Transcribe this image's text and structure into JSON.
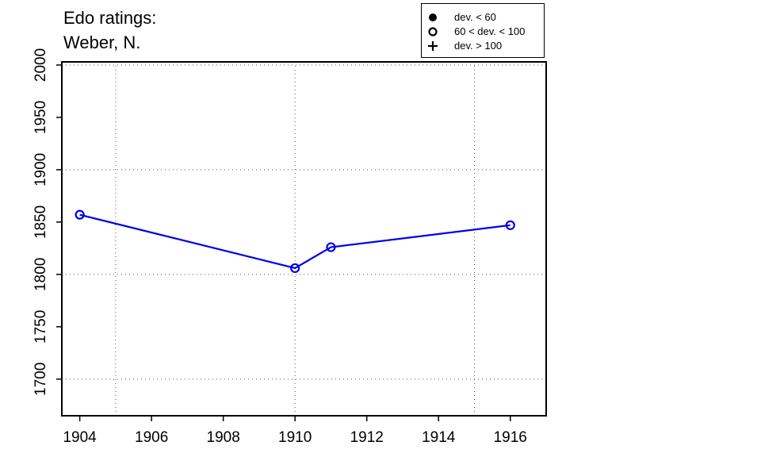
{
  "title": {
    "line1": "Edo ratings:",
    "line2": "Weber, N."
  },
  "legend": {
    "items": [
      {
        "symbol": "filled-circle",
        "label": "dev. < 60"
      },
      {
        "symbol": "open-circle",
        "label": "60 < dev. < 100"
      },
      {
        "symbol": "plus",
        "label": "dev. > 100"
      }
    ]
  },
  "colors": {
    "series": "#0000ee",
    "axis": "#000000",
    "grid": "#555555"
  },
  "chart_data": {
    "type": "line",
    "title": "Edo ratings: Weber, N.",
    "xlabel": "",
    "ylabel": "",
    "xlim": [
      1903.5,
      1917
    ],
    "ylim": [
      1665,
      2003
    ],
    "x_ticks": [
      "1904",
      "1906",
      "1908",
      "1910",
      "1912",
      "1914",
      "1916"
    ],
    "y_ticks": [
      "1700",
      "1750",
      "1800",
      "1850",
      "1900",
      "1950",
      "2000"
    ],
    "x_grid": [
      1905,
      1910,
      1915
    ],
    "y_grid": [
      1700,
      1800,
      1900,
      2000
    ],
    "grid": "dotted",
    "legend_position": "top-right",
    "series": [
      {
        "marker": "open-circle",
        "x": [
          1904,
          1910,
          1911,
          1916
        ],
        "y": [
          1857,
          1806,
          1826,
          1847
        ]
      }
    ]
  }
}
